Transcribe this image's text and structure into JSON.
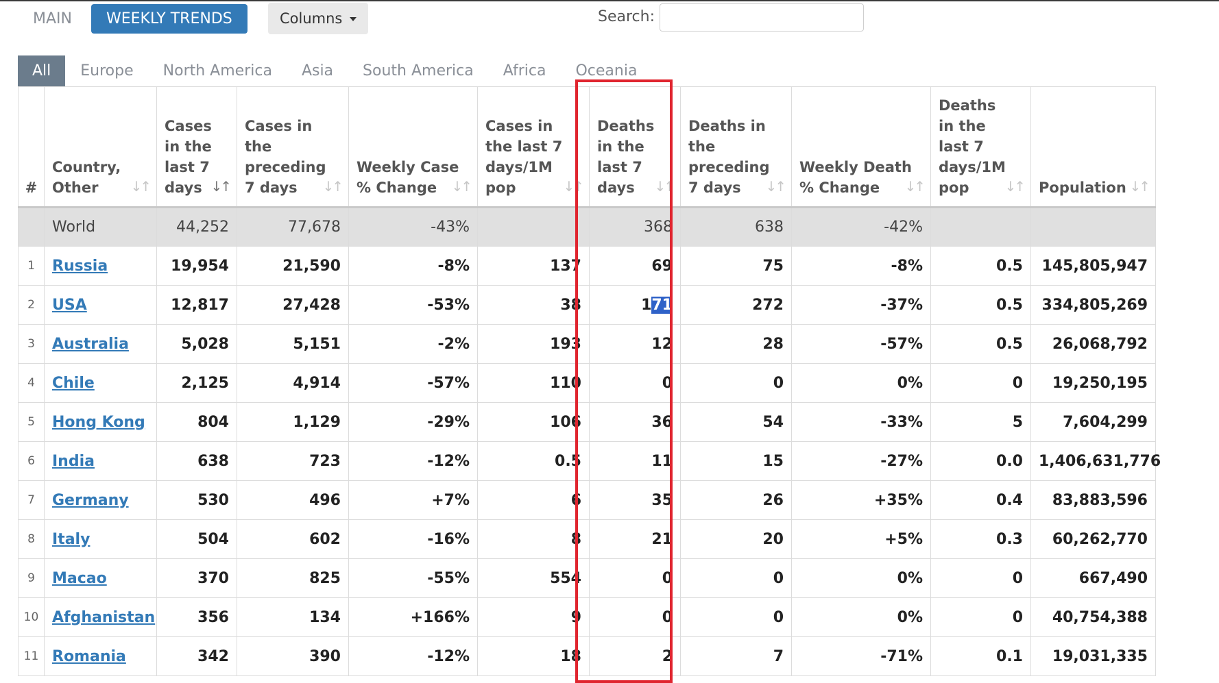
{
  "top_tabs": [
    "MAIN",
    "WEEKLY TRENDS"
  ],
  "columns_button": "Columns",
  "search": {
    "label": "Search:",
    "value": ""
  },
  "region_tabs": [
    "All",
    "Europe",
    "North America",
    "Asia",
    "South America",
    "Africa",
    "Oceania"
  ],
  "headers": [
    "#",
    "Country, Other",
    "Cases in the last 7 days",
    "Cases in the preceding 7 days",
    "Weekly Case % Change",
    "Cases in the last 7 days/1M pop",
    "Deaths in the last 7 days",
    "Deaths in the preceding 7 days",
    "Weekly Death % Change",
    "Deaths in the last 7 days/1M pop",
    "Population"
  ],
  "world": {
    "country": "World",
    "cases_7d": "44,252",
    "cases_prev": "77,678",
    "case_change": "-43%",
    "cases_per_m": "",
    "deaths_7d": "368",
    "deaths_prev": "638",
    "death_change": "-42%",
    "deaths_per_m": "",
    "population": ""
  },
  "rows": [
    {
      "rank": "1",
      "country": "Russia",
      "cases_7d": "19,954",
      "cases_prev": "21,590",
      "case_change": "-8%",
      "cases_per_m": "137",
      "deaths_7d": "69",
      "deaths_prev": "75",
      "death_change": "-8%",
      "deaths_per_m": "0.5",
      "population": "145,805,947"
    },
    {
      "rank": "2",
      "country": "USA",
      "cases_7d": "12,817",
      "cases_prev": "27,428",
      "case_change": "-53%",
      "cases_per_m": "38",
      "deaths_7d_a": "1",
      "deaths_7d_b": "71",
      "deaths_prev": "272",
      "death_change": "-37%",
      "deaths_per_m": "0.5",
      "population": "334,805,269"
    },
    {
      "rank": "3",
      "country": "Australia",
      "cases_7d": "5,028",
      "cases_prev": "5,151",
      "case_change": "-2%",
      "cases_per_m": "193",
      "deaths_7d": "12",
      "deaths_prev": "28",
      "death_change": "-57%",
      "deaths_per_m": "0.5",
      "population": "26,068,792"
    },
    {
      "rank": "4",
      "country": "Chile",
      "cases_7d": "2,125",
      "cases_prev": "4,914",
      "case_change": "-57%",
      "cases_per_m": "110",
      "deaths_7d": "0",
      "deaths_prev": "0",
      "death_change": "0%",
      "deaths_per_m": "0",
      "population": "19,250,195"
    },
    {
      "rank": "5",
      "country": "Hong Kong",
      "cases_7d": "804",
      "cases_prev": "1,129",
      "case_change": "-29%",
      "cases_per_m": "106",
      "deaths_7d": "36",
      "deaths_prev": "54",
      "death_change": "-33%",
      "deaths_per_m": "5",
      "population": "7,604,299"
    },
    {
      "rank": "6",
      "country": "India",
      "cases_7d": "638",
      "cases_prev": "723",
      "case_change": "-12%",
      "cases_per_m": "0.5",
      "deaths_7d": "11",
      "deaths_prev": "15",
      "death_change": "-27%",
      "deaths_per_m": "0.0",
      "population": "1,406,631,776"
    },
    {
      "rank": "7",
      "country": "Germany",
      "cases_7d": "530",
      "cases_prev": "496",
      "case_change": "+7%",
      "cases_per_m": "6",
      "deaths_7d": "35",
      "deaths_prev": "26",
      "death_change": "+35%",
      "deaths_per_m": "0.4",
      "population": "83,883,596"
    },
    {
      "rank": "8",
      "country": "Italy",
      "cases_7d": "504",
      "cases_prev": "602",
      "case_change": "-16%",
      "cases_per_m": "8",
      "deaths_7d": "21",
      "deaths_prev": "20",
      "death_change": "+5%",
      "deaths_per_m": "0.3",
      "population": "60,262,770"
    },
    {
      "rank": "9",
      "country": "Macao",
      "cases_7d": "370",
      "cases_prev": "825",
      "case_change": "-55%",
      "cases_per_m": "554",
      "deaths_7d": "0",
      "deaths_prev": "0",
      "death_change": "0%",
      "deaths_per_m": "0",
      "population": "667,490"
    },
    {
      "rank": "10",
      "country": "Afghanistan",
      "cases_7d": "356",
      "cases_prev": "134",
      "case_change": "+166%",
      "cases_per_m": "9",
      "deaths_7d": "0",
      "deaths_prev": "0",
      "death_change": "0%",
      "deaths_per_m": "0",
      "population": "40,754,388"
    },
    {
      "rank": "11",
      "country": "Romania",
      "cases_7d": "342",
      "cases_prev": "390",
      "case_change": "-12%",
      "cases_per_m": "18",
      "deaths_7d": "2",
      "deaths_prev": "7",
      "death_change": "-71%",
      "deaths_per_m": "0.1",
      "population": "19,031,335"
    }
  ],
  "icons": {
    "sort": "sort-arrows-icon",
    "caret": "caret-down-icon"
  },
  "colors": {
    "primary": "#337ab7",
    "region_active": "#6b7c8c",
    "highlight_box": "#e0252f",
    "selection": "#2f62c8"
  }
}
